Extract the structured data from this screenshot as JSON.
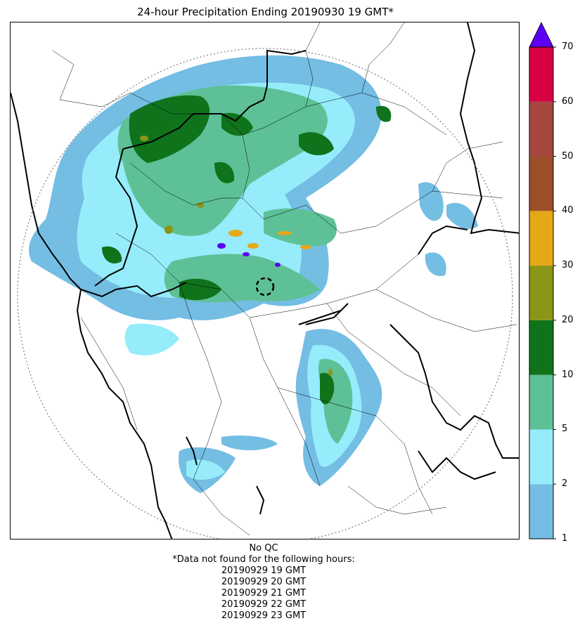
{
  "title": "24-hour Precipitation Ending 20190930 19 GMT*",
  "colorbar": {
    "ticks": [
      "1",
      "2",
      "5",
      "10",
      "20",
      "30",
      "40",
      "50",
      "60",
      "70"
    ],
    "colors": [
      "#74bde3",
      "#96ecfb",
      "#5ec096",
      "#0f731b",
      "#8b9517",
      "#e5a817",
      "#9c4f28",
      "#a5473f",
      "#d60043"
    ],
    "extend_color": "#5b00f2"
  },
  "footer": {
    "qc": "No QC",
    "note": "*Data not found for the following hours:",
    "hours": [
      "20190929 19 GMT",
      "20190929 20 GMT",
      "20190929 21 GMT",
      "20190929 22 GMT",
      "20190929 23 GMT"
    ]
  },
  "map": {
    "precip_colors": {
      "light": "#74bde3",
      "cyan": "#96ecfb",
      "teal": "#5ec096",
      "green": "#0f731b",
      "olive": "#8b9517",
      "orange": "#e5a817",
      "purple": "#5b00f2"
    },
    "boundary_color": "#000000",
    "range_ring_color": "#888888"
  }
}
